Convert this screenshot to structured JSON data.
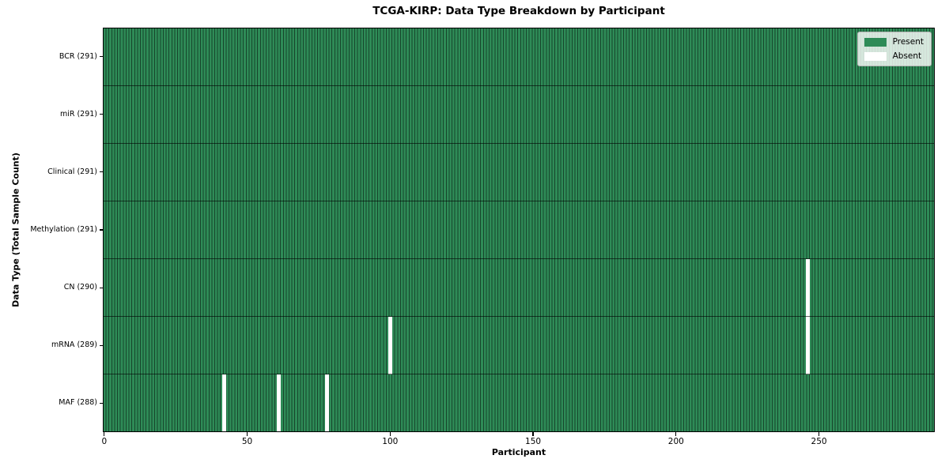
{
  "chart_data": {
    "type": "heatmap",
    "title": "TCGA-KIRP: Data Type Breakdown by Participant",
    "xlabel": "Participant",
    "ylabel": "Data Type (Total Sample Count)",
    "n_participants": 291,
    "x_ticks": [
      0,
      50,
      100,
      150,
      200,
      250
    ],
    "rows": [
      {
        "label": "BCR (291)",
        "data_type": "BCR",
        "present_count": 291,
        "absent_participants": []
      },
      {
        "label": "miR (291)",
        "data_type": "miR",
        "present_count": 291,
        "absent_participants": []
      },
      {
        "label": "Clinical (291)",
        "data_type": "Clinical",
        "present_count": 291,
        "absent_participants": []
      },
      {
        "label": "Methylation (291)",
        "data_type": "Methylation",
        "present_count": 291,
        "absent_participants": []
      },
      {
        "label": "CN (290)",
        "data_type": "CN",
        "present_count": 290,
        "absent_participants": [
          246
        ]
      },
      {
        "label": "mRNA (289)",
        "data_type": "mRNA",
        "present_count": 289,
        "absent_participants": [
          100,
          246
        ]
      },
      {
        "label": "MAF (288)",
        "data_type": "MAF",
        "present_count": 288,
        "absent_participants": [
          42,
          61,
          78
        ]
      }
    ],
    "legend": {
      "position": "upper right",
      "entries": [
        {
          "label": "Present",
          "color": "#2e8b57"
        },
        {
          "label": "Absent",
          "color": "#ffffff"
        }
      ]
    },
    "colors": {
      "present": "#2e8b57",
      "absent": "#ffffff",
      "cell_edge": "rgba(0,0,0,0.5)",
      "row_divider": "rgba(0,0,0,0.6)",
      "axis": "#000000",
      "legend_bg": "rgba(255,255,255,0.8)",
      "legend_border": "#b3b3b3"
    }
  }
}
